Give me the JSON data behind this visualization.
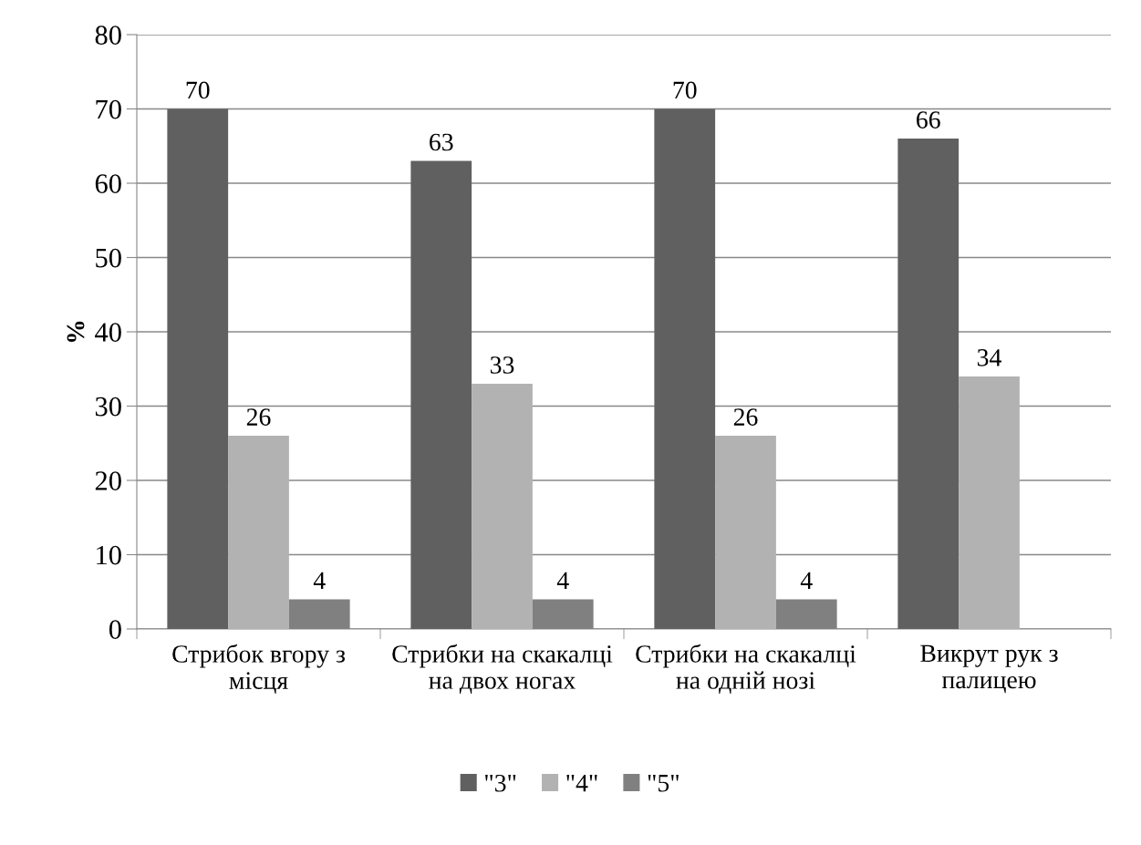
{
  "chart_data": {
    "type": "bar",
    "ylabel": "%",
    "categories": [
      "Стрибок вгору з місця",
      "Стрибки на скакалці на двох ногах",
      "Стрибки на скакалці на одній нозі",
      "Викрут рук з палицею"
    ],
    "series": [
      {
        "name": "\"3\"",
        "color": "#606060",
        "values": [
          70,
          63,
          70,
          66
        ]
      },
      {
        "name": "\"4\"",
        "color": "#b2b2b2",
        "values": [
          26,
          33,
          26,
          34
        ]
      },
      {
        "name": "\"5\"",
        "color": "#808080",
        "values": [
          4,
          4,
          4,
          null
        ]
      }
    ],
    "ylim": [
      0,
      80
    ],
    "yticks": [
      0,
      10,
      20,
      30,
      40,
      50,
      60,
      70,
      80
    ],
    "grid": "y",
    "legend": "bottom",
    "data_labels": true
  }
}
